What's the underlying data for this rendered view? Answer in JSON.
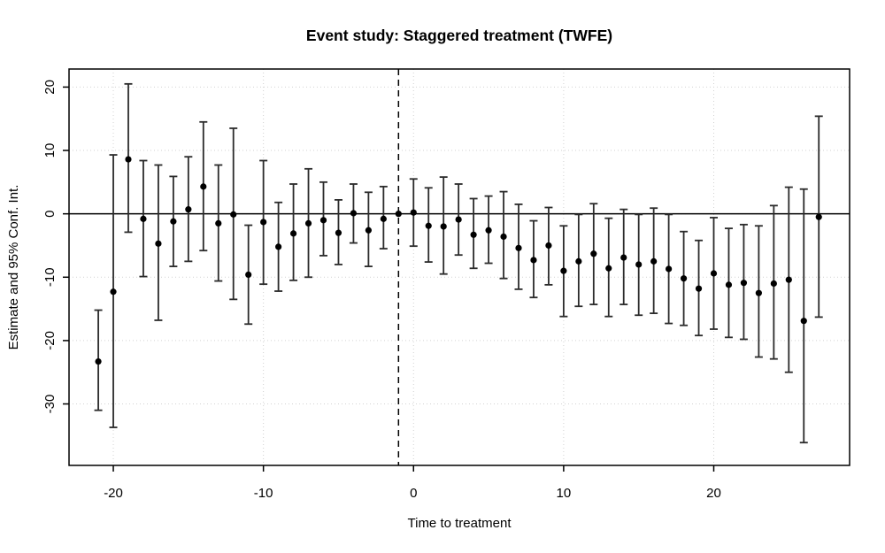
{
  "chart_data": {
    "type": "scatter",
    "subtype": "error-bar-event-study",
    "title": "Event study: Staggered treatment (TWFE)",
    "xlabel": "Time to treatment",
    "ylabel": "Estimate and 95% Conf. Int.",
    "xticks": [
      -20,
      -10,
      0,
      10,
      20
    ],
    "yticks": [
      -30,
      -20,
      -10,
      0,
      10,
      20
    ],
    "xlim": [
      -22.95,
      29.05
    ],
    "ylim": [
      -39.7,
      22.85
    ],
    "grid": true,
    "grid_style": "dotted",
    "legend": "none",
    "hline_y": 0,
    "vline_x": -1,
    "vline_style": "dashed",
    "reference_period": -1,
    "colors": {
      "point": "#000000",
      "error_bar": "#2b2b2b",
      "grid": "#d2d2d2",
      "axis": "#000000",
      "background": "#ffffff"
    },
    "points": [
      {
        "t": -21,
        "estimate": -23.3,
        "lo": -31.0,
        "hi": -15.2
      },
      {
        "t": -20,
        "estimate": -12.3,
        "lo": -33.7,
        "hi": 9.3
      },
      {
        "t": -19,
        "estimate": 8.6,
        "lo": -2.9,
        "hi": 20.5
      },
      {
        "t": -18,
        "estimate": -0.8,
        "lo": -9.9,
        "hi": 8.4
      },
      {
        "t": -17,
        "estimate": -4.7,
        "lo": -16.8,
        "hi": 7.7
      },
      {
        "t": -16,
        "estimate": -1.2,
        "lo": -8.3,
        "hi": 5.9
      },
      {
        "t": -15,
        "estimate": 0.7,
        "lo": -7.5,
        "hi": 9.0
      },
      {
        "t": -14,
        "estimate": 4.3,
        "lo": -5.8,
        "hi": 14.5
      },
      {
        "t": -13,
        "estimate": -1.5,
        "lo": -10.6,
        "hi": 7.7
      },
      {
        "t": -12,
        "estimate": -0.1,
        "lo": -13.5,
        "hi": 13.5
      },
      {
        "t": -11,
        "estimate": -9.6,
        "lo": -17.4,
        "hi": -1.8
      },
      {
        "t": -10,
        "estimate": -1.3,
        "lo": -11.1,
        "hi": 8.4
      },
      {
        "t": -9,
        "estimate": -5.2,
        "lo": -12.2,
        "hi": 1.8
      },
      {
        "t": -8,
        "estimate": -3.1,
        "lo": -10.5,
        "hi": 4.7
      },
      {
        "t": -7,
        "estimate": -1.5,
        "lo": -10.0,
        "hi": 7.1
      },
      {
        "t": -6,
        "estimate": -1.0,
        "lo": -6.6,
        "hi": 5.0
      },
      {
        "t": -5,
        "estimate": -3.0,
        "lo": -8.0,
        "hi": 2.2
      },
      {
        "t": -4,
        "estimate": 0.1,
        "lo": -4.6,
        "hi": 4.7
      },
      {
        "t": -3,
        "estimate": -2.6,
        "lo": -8.3,
        "hi": 3.4
      },
      {
        "t": -2,
        "estimate": -0.8,
        "lo": -5.5,
        "hi": 4.3
      },
      {
        "t": -1,
        "estimate": 0.0,
        "lo": null,
        "hi": null
      },
      {
        "t": 0,
        "estimate": 0.2,
        "lo": -5.1,
        "hi": 5.5
      },
      {
        "t": 1,
        "estimate": -1.9,
        "lo": -7.6,
        "hi": 4.1
      },
      {
        "t": 2,
        "estimate": -2.0,
        "lo": -9.5,
        "hi": 5.8
      },
      {
        "t": 3,
        "estimate": -0.9,
        "lo": -6.5,
        "hi": 4.7
      },
      {
        "t": 4,
        "estimate": -3.3,
        "lo": -8.6,
        "hi": 2.4
      },
      {
        "t": 5,
        "estimate": -2.6,
        "lo": -7.8,
        "hi": 2.8
      },
      {
        "t": 6,
        "estimate": -3.6,
        "lo": -10.2,
        "hi": 3.5
      },
      {
        "t": 7,
        "estimate": -5.4,
        "lo": -11.9,
        "hi": 1.5
      },
      {
        "t": 8,
        "estimate": -7.3,
        "lo": -13.2,
        "hi": -1.1
      },
      {
        "t": 9,
        "estimate": -5.0,
        "lo": -11.2,
        "hi": 1.0
      },
      {
        "t": 10,
        "estimate": -9.0,
        "lo": -16.2,
        "hi": -1.9
      },
      {
        "t": 11,
        "estimate": -7.5,
        "lo": -14.6,
        "hi": -0.1
      },
      {
        "t": 12,
        "estimate": -6.3,
        "lo": -14.3,
        "hi": 1.6
      },
      {
        "t": 13,
        "estimate": -8.6,
        "lo": -16.2,
        "hi": -0.7
      },
      {
        "t": 14,
        "estimate": -6.9,
        "lo": -14.3,
        "hi": 0.7
      },
      {
        "t": 15,
        "estimate": -8.0,
        "lo": -16.0,
        "hi": -0.1
      },
      {
        "t": 16,
        "estimate": -7.5,
        "lo": -15.7,
        "hi": 0.9
      },
      {
        "t": 17,
        "estimate": -8.7,
        "lo": -17.3,
        "hi": -0.1
      },
      {
        "t": 18,
        "estimate": -10.2,
        "lo": -17.6,
        "hi": -2.8
      },
      {
        "t": 19,
        "estimate": -11.8,
        "lo": -19.2,
        "hi": -4.2
      },
      {
        "t": 20,
        "estimate": -9.4,
        "lo": -18.2,
        "hi": -0.6
      },
      {
        "t": 21,
        "estimate": -11.2,
        "lo": -19.5,
        "hi": -2.3
      },
      {
        "t": 22,
        "estimate": -10.9,
        "lo": -19.8,
        "hi": -1.7
      },
      {
        "t": 23,
        "estimate": -12.5,
        "lo": -22.6,
        "hi": -1.9
      },
      {
        "t": 24,
        "estimate": -11.0,
        "lo": -22.9,
        "hi": 1.3
      },
      {
        "t": 25,
        "estimate": -10.4,
        "lo": -25.0,
        "hi": 4.2
      },
      {
        "t": 26,
        "estimate": -16.9,
        "lo": -36.1,
        "hi": 3.9
      },
      {
        "t": 27,
        "estimate": -0.5,
        "lo": -16.3,
        "hi": 15.4
      }
    ]
  }
}
